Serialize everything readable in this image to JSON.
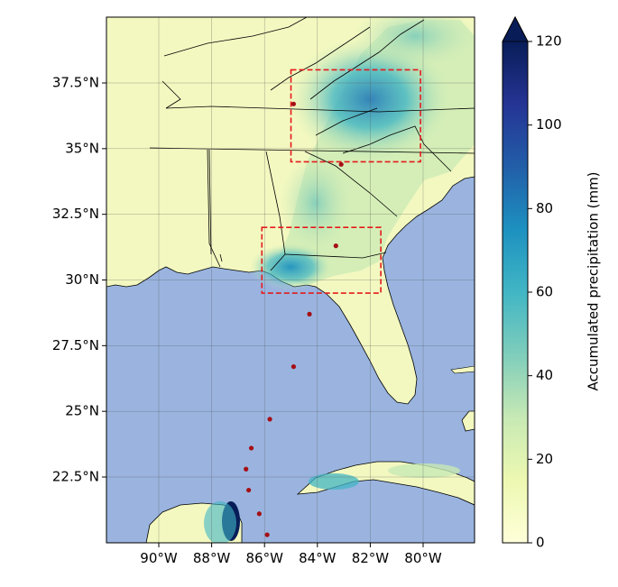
{
  "map": {
    "lat_ticks": [
      {
        "lat": 22.5,
        "label": "22.5°N"
      },
      {
        "lat": 25.0,
        "label": "25°N"
      },
      {
        "lat": 27.5,
        "label": "27.5°N"
      },
      {
        "lat": 30.0,
        "label": "30°N"
      },
      {
        "lat": 32.5,
        "label": "32.5°N"
      },
      {
        "lat": 35.0,
        "label": "35°N"
      },
      {
        "lat": 37.5,
        "label": "37.5°N"
      }
    ],
    "lon_ticks": [
      {
        "lon": -90,
        "label": "90°W"
      },
      {
        "lon": -88,
        "label": "88°W"
      },
      {
        "lon": -86,
        "label": "86°W"
      },
      {
        "lon": -84,
        "label": "84°W"
      },
      {
        "lon": -82,
        "label": "82°W"
      },
      {
        "lon": -80,
        "label": "80°W"
      }
    ],
    "extent": {
      "lon_min": -92.0,
      "lon_max": -78.0,
      "lat_min": 20.0,
      "lat_max": 40.0
    },
    "colors": {
      "ocean": "#9ab4df",
      "land_low": "#fdfdcc",
      "land_mid": "#c6e8b4",
      "land_wet": "#7fcdbb",
      "land_heavy": "#41b6c4",
      "land_max": "#225ea8",
      "box": "#e41a1c",
      "track": "#a50f15"
    },
    "boxes": [
      {
        "lon_min": -85.0,
        "lon_max": -80.1,
        "lat_min": 34.5,
        "lat_max": 38.0
      },
      {
        "lon_min": -86.1,
        "lon_max": -81.6,
        "lat_min": 29.5,
        "lat_max": 32.0
      }
    ],
    "track": [
      {
        "lon": -85.9,
        "lat": 20.3
      },
      {
        "lon": -86.2,
        "lat": 21.1
      },
      {
        "lon": -86.6,
        "lat": 22.0
      },
      {
        "lon": -86.7,
        "lat": 22.8
      },
      {
        "lon": -86.5,
        "lat": 23.6
      },
      {
        "lon": -85.8,
        "lat": 24.7
      },
      {
        "lon": -84.9,
        "lat": 26.7
      },
      {
        "lon": -84.3,
        "lat": 28.7
      },
      {
        "lon": -83.3,
        "lat": 31.3
      },
      {
        "lon": -83.1,
        "lat": 34.4
      },
      {
        "lon": -84.9,
        "lat": 36.7
      }
    ]
  },
  "colorbar": {
    "label": "Accumulated precipitation (mm)",
    "min": 0,
    "max": 120,
    "ticks": [
      0,
      20,
      40,
      60,
      80,
      100,
      120
    ],
    "colors": [
      "#ffffd9",
      "#edf8b1",
      "#c7e9b4",
      "#7fcdbb",
      "#41b6c4",
      "#1d91c0",
      "#225ea8",
      "#253494",
      "#081d58"
    ],
    "extend": "max"
  }
}
